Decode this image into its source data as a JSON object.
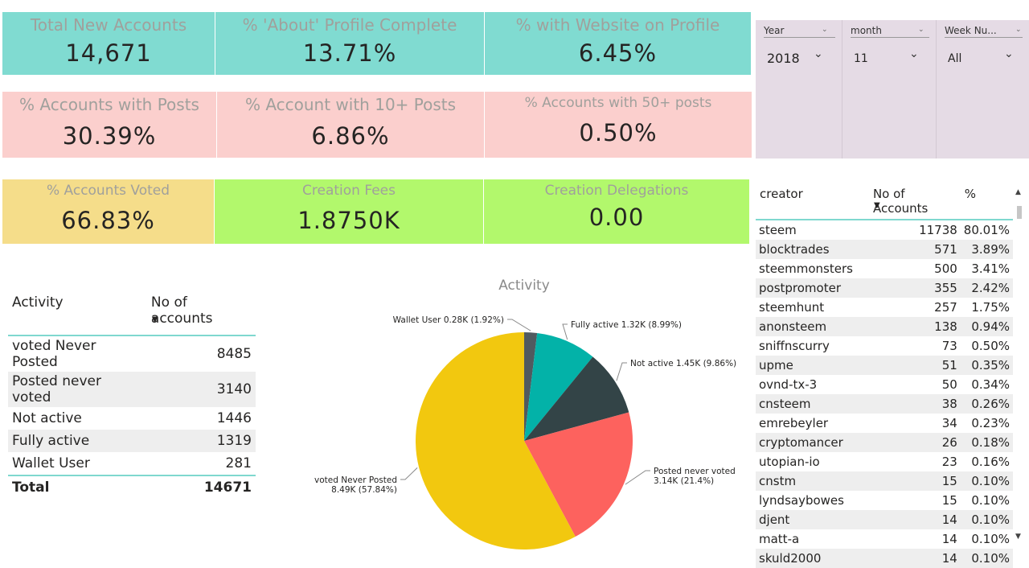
{
  "cards": {
    "total_new_accounts": {
      "title": "Total New Accounts",
      "value": "14,671"
    },
    "about_profile": {
      "title": "% 'About' Profile Complete",
      "value": "13.71%"
    },
    "website_profile": {
      "title": "% with Website on Profile",
      "value": "6.45%"
    },
    "accounts_posts": {
      "title": "%  Accounts with Posts",
      "value": "30.39%"
    },
    "accounts_10": {
      "title": "% Account with 10+ Posts",
      "value": "6.86%"
    },
    "accounts_50": {
      "title": "% Accounts with 50+ posts",
      "value": "0.50%"
    },
    "voted": {
      "title": "% Accounts Voted",
      "value": "66.83%"
    },
    "fees": {
      "title": "Creation Fees",
      "value": "1.8750K"
    },
    "delegations": {
      "title": "Creation Delegations",
      "value": "0.00"
    }
  },
  "slicers": [
    {
      "label": "Year",
      "selected": "2018"
    },
    {
      "label": "month",
      "selected": "11"
    },
    {
      "label": "Week Nu...",
      "selected": "All"
    }
  ],
  "activity_table": {
    "headers": [
      "Activity",
      "No of accounts"
    ],
    "rows": [
      {
        "activity": "voted Never Posted",
        "count": "8485"
      },
      {
        "activity": "Posted never voted",
        "count": "3140"
      },
      {
        "activity": "Not active",
        "count": "1446"
      },
      {
        "activity": "Fully active",
        "count": "1319"
      },
      {
        "activity": "Wallet User",
        "count": "281"
      }
    ],
    "total": {
      "label": "Total",
      "count": "14671"
    }
  },
  "creator_table": {
    "headers": [
      "creator",
      "No of Accounts",
      "%"
    ],
    "rows": [
      {
        "creator": "steem",
        "count": "11738",
        "pct": "80.01%"
      },
      {
        "creator": "blocktrades",
        "count": "571",
        "pct": "3.89%"
      },
      {
        "creator": "steemmonsters",
        "count": "500",
        "pct": "3.41%"
      },
      {
        "creator": "postpromoter",
        "count": "355",
        "pct": "2.42%"
      },
      {
        "creator": "steemhunt",
        "count": "257",
        "pct": "1.75%"
      },
      {
        "creator": "anonsteem",
        "count": "138",
        "pct": "0.94%"
      },
      {
        "creator": "sniffnscurry",
        "count": "73",
        "pct": "0.50%"
      },
      {
        "creator": "upme",
        "count": "51",
        "pct": "0.35%"
      },
      {
        "creator": "ovnd-tx-3",
        "count": "50",
        "pct": "0.34%"
      },
      {
        "creator": "cnsteem",
        "count": "38",
        "pct": "0.26%"
      },
      {
        "creator": "emrebeyler",
        "count": "34",
        "pct": "0.23%"
      },
      {
        "creator": "cryptomancer",
        "count": "26",
        "pct": "0.18%"
      },
      {
        "creator": "utopian-io",
        "count": "23",
        "pct": "0.16%"
      },
      {
        "creator": "cnstm",
        "count": "15",
        "pct": "0.10%"
      },
      {
        "creator": "lyndsaybowes",
        "count": "15",
        "pct": "0.10%"
      },
      {
        "creator": "djent",
        "count": "14",
        "pct": "0.10%"
      },
      {
        "creator": "matt-a",
        "count": "14",
        "pct": "0.10%"
      },
      {
        "creator": "skuld2000",
        "count": "14",
        "pct": "0.10%"
      }
    ]
  },
  "chart_data": {
    "type": "pie",
    "title": "Activity",
    "slices": [
      {
        "name": "Wallet User",
        "value": 281,
        "label": "Wallet User 0.28K (1.92%)",
        "color": "#505a5f"
      },
      {
        "name": "Fully active",
        "value": 1319,
        "label": "Fully active 1.32K (8.99%)",
        "color": "#03b2a8"
      },
      {
        "name": "Not active",
        "value": 1446,
        "label": "Not active 1.45K (9.86%)",
        "color": "#334447"
      },
      {
        "name": "Posted never voted",
        "value": 3140,
        "label": "Posted never voted",
        "label2": "3.14K (21.4%)",
        "color": "#fd625e"
      },
      {
        "name": "voted Never Posted",
        "value": 8485,
        "label": "voted Never Posted",
        "label2": "8.49K (57.84%)",
        "color": "#f2c80f"
      }
    ]
  },
  "colors": {
    "accent": "#7fd8cf",
    "teal": "#80dbd1",
    "pink": "#fbcfcd",
    "gold": "#f5dd8a",
    "lime": "#b2f86c",
    "slicer_bg": "#e5dbe5"
  }
}
